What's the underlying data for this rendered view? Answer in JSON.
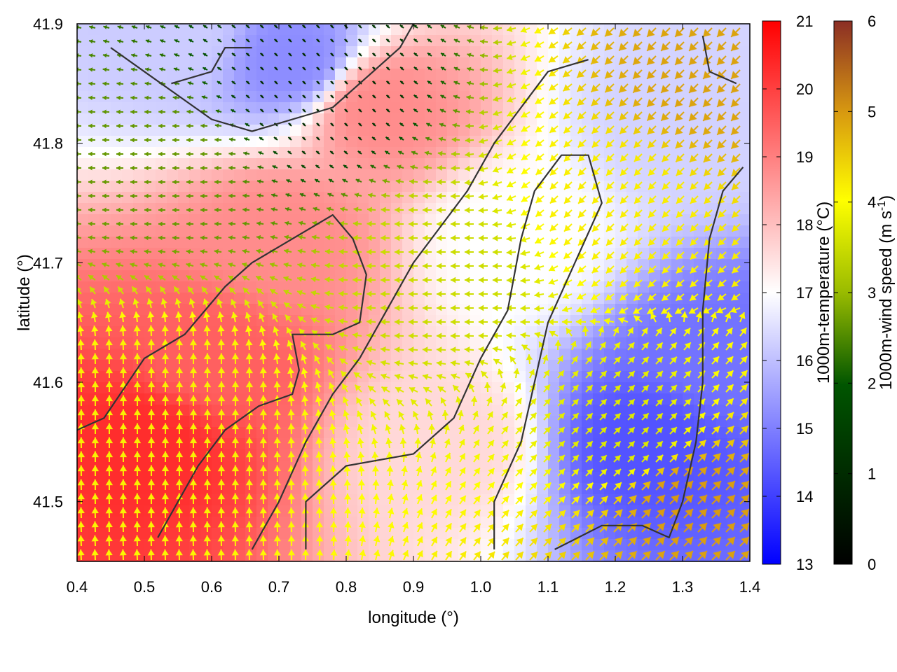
{
  "chart_data": [
    {
      "type": "heatmap",
      "title": "",
      "xlabel": "longitude (°)",
      "ylabel": "latitude (°)",
      "xlim": [
        0.4,
        1.4
      ],
      "ylim": [
        41.45,
        41.9
      ],
      "x_ticks": [
        "0.4",
        "0.5",
        "0.6",
        "0.7",
        "0.8",
        "0.9",
        "1.0",
        "1.1",
        "1.2",
        "1.3",
        "1.4"
      ],
      "y_ticks": [
        "41.5",
        "41.6",
        "41.7",
        "41.8",
        "41.9"
      ],
      "x_tick_values": [
        0.4,
        0.5,
        0.6,
        0.7,
        0.8,
        0.9,
        1.0,
        1.1,
        1.2,
        1.3,
        1.4
      ],
      "y_tick_values": [
        41.5,
        41.6,
        41.7,
        41.8,
        41.9
      ],
      "temperature_colorbar": {
        "label": "1000m-temperature (°C)",
        "range": [
          13,
          21
        ],
        "ticks": [
          "13",
          "14",
          "15",
          "16",
          "17",
          "18",
          "19",
          "20",
          "21"
        ],
        "tick_values": [
          13,
          14,
          15,
          16,
          17,
          18,
          19,
          20,
          21
        ],
        "colors": [
          "#0000ff",
          "#ffffff",
          "#ff0000"
        ]
      },
      "wind_speed_colorbar": {
        "label_main": "1000m-wind speed (m s",
        "label_sup": "-1",
        "label_end": ")",
        "range": [
          0,
          6
        ],
        "ticks": [
          "0",
          "1",
          "2",
          "3",
          "4",
          "5",
          "6"
        ],
        "tick_values": [
          0,
          1,
          2,
          3,
          4,
          5,
          6
        ],
        "colors": [
          "#000000",
          "#005500",
          "#99bb00",
          "#ffff00",
          "#d89a10",
          "#8b2e25"
        ]
      },
      "temperature_regions": [
        {
          "lon": 0.5,
          "lat": 41.55,
          "value": 20.3
        },
        {
          "lon": 0.6,
          "lat": 41.62,
          "value": 19.5
        },
        {
          "lon": 0.7,
          "lat": 41.72,
          "value": 18.8
        },
        {
          "lon": 0.85,
          "lat": 41.83,
          "value": 18.8
        },
        {
          "lon": 0.72,
          "lat": 41.87,
          "value": 15.2
        },
        {
          "lon": 0.55,
          "lat": 41.89,
          "value": 16.2
        },
        {
          "lon": 1.05,
          "lat": 41.72,
          "value": 17.0
        },
        {
          "lon": 1.25,
          "lat": 41.55,
          "value": 14.3
        },
        {
          "lon": 1.35,
          "lat": 41.62,
          "value": 14.8
        },
        {
          "lon": 1.3,
          "lat": 41.82,
          "value": 16.3
        },
        {
          "lon": 0.95,
          "lat": 41.55,
          "value": 17.6
        }
      ],
      "wind_regions": [
        {
          "lon": 0.55,
          "lat": 41.78,
          "speed": 2.0,
          "direction": "west"
        },
        {
          "lon": 0.75,
          "lat": 41.84,
          "speed": 0.6,
          "direction": "north-west"
        },
        {
          "lon": 0.55,
          "lat": 41.58,
          "speed": 3.8,
          "direction": "north"
        },
        {
          "lon": 0.95,
          "lat": 41.7,
          "speed": 3.0,
          "direction": "west"
        },
        {
          "lon": 1.2,
          "lat": 41.75,
          "speed": 3.8,
          "direction": "south-west"
        },
        {
          "lon": 1.35,
          "lat": 41.86,
          "speed": 4.7,
          "direction": "south-west"
        },
        {
          "lon": 1.3,
          "lat": 41.5,
          "speed": 4.8,
          "direction": "north-east"
        },
        {
          "lon": 1.22,
          "lat": 41.55,
          "speed": 3.2,
          "direction": "north-east"
        }
      ],
      "contours": [
        [
          [
            0.52,
            41.47
          ],
          [
            0.58,
            41.53
          ],
          [
            0.62,
            41.56
          ],
          [
            0.67,
            41.58
          ],
          [
            0.72,
            41.59
          ],
          [
            0.73,
            41.61
          ],
          [
            0.72,
            41.64
          ],
          [
            0.78,
            41.64
          ],
          [
            0.82,
            41.65
          ],
          [
            0.83,
            41.69
          ],
          [
            0.81,
            41.72
          ],
          [
            0.78,
            41.74
          ],
          [
            0.72,
            41.72
          ],
          [
            0.66,
            41.7
          ],
          [
            0.62,
            41.68
          ],
          [
            0.56,
            41.64
          ],
          [
            0.5,
            41.62
          ],
          [
            0.44,
            41.57
          ],
          [
            0.4,
            41.56
          ]
        ],
        [
          [
            0.74,
            41.46
          ],
          [
            0.74,
            41.5
          ],
          [
            0.8,
            41.53
          ],
          [
            0.9,
            41.54
          ],
          [
            0.96,
            41.57
          ],
          [
            1.0,
            41.62
          ],
          [
            1.04,
            41.66
          ],
          [
            1.06,
            41.72
          ],
          [
            1.08,
            41.76
          ],
          [
            1.12,
            41.79
          ],
          [
            1.16,
            41.79
          ],
          [
            1.18,
            41.75
          ],
          [
            1.14,
            41.7
          ],
          [
            1.1,
            41.65
          ],
          [
            1.08,
            41.6
          ],
          [
            1.06,
            41.55
          ],
          [
            1.02,
            41.5
          ],
          [
            1.02,
            41.46
          ]
        ],
        [
          [
            0.66,
            41.46
          ],
          [
            0.7,
            41.5
          ],
          [
            0.74,
            41.55
          ],
          [
            0.78,
            41.59
          ],
          [
            0.82,
            41.62
          ],
          [
            0.86,
            41.66
          ],
          [
            0.9,
            41.7
          ],
          [
            0.94,
            41.73
          ],
          [
            0.98,
            41.76
          ],
          [
            1.02,
            41.8
          ],
          [
            1.06,
            41.83
          ],
          [
            1.1,
            41.86
          ],
          [
            1.16,
            41.87
          ]
        ],
        [
          [
            0.45,
            41.88
          ],
          [
            0.5,
            41.86
          ],
          [
            0.55,
            41.84
          ],
          [
            0.6,
            41.82
          ],
          [
            0.66,
            41.81
          ],
          [
            0.72,
            41.82
          ],
          [
            0.78,
            41.83
          ],
          [
            0.84,
            41.86
          ],
          [
            0.88,
            41.88
          ],
          [
            0.9,
            41.9
          ]
        ],
        [
          [
            1.11,
            41.46
          ],
          [
            1.18,
            41.48
          ],
          [
            1.24,
            41.48
          ],
          [
            1.28,
            41.47
          ],
          [
            1.3,
            41.5
          ],
          [
            1.32,
            41.55
          ],
          [
            1.33,
            41.6
          ],
          [
            1.33,
            41.66
          ],
          [
            1.34,
            41.72
          ],
          [
            1.36,
            41.76
          ],
          [
            1.39,
            41.78
          ]
        ],
        [
          [
            1.33,
            41.89
          ],
          [
            1.34,
            41.86
          ],
          [
            1.38,
            41.85
          ]
        ],
        [
          [
            0.54,
            41.85
          ],
          [
            0.6,
            41.86
          ],
          [
            0.62,
            41.88
          ],
          [
            0.66,
            41.88
          ]
        ]
      ]
    }
  ]
}
